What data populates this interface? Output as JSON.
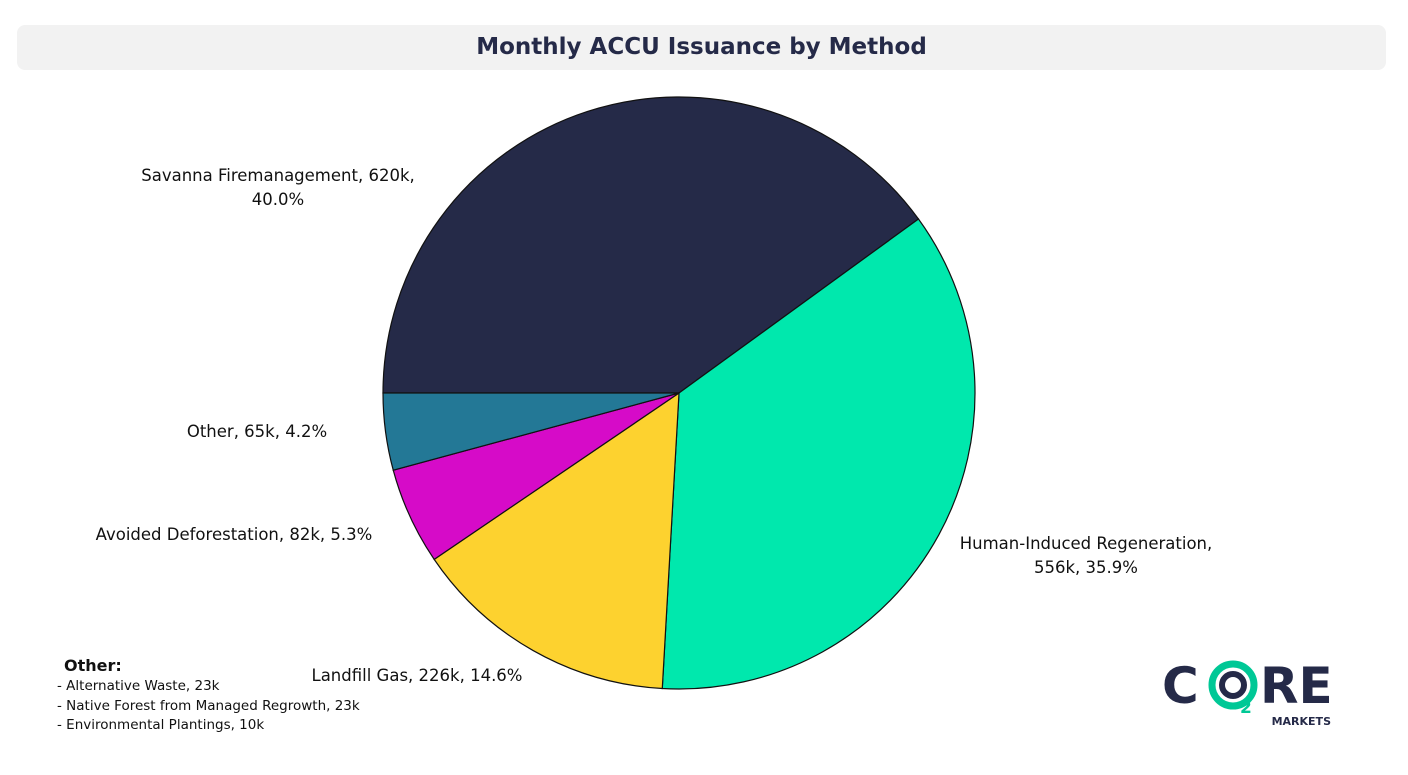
{
  "chart_data": {
    "type": "pie",
    "title": "Monthly ACCU Issuance by Method",
    "labels": [
      "Savanna Firemanagement, 620k,\n40.0%",
      "Human-Induced Regeneration,\n556k, 35.9%",
      "Landfill Gas, 226k, 14.6%",
      "Avoided Deforestation, 82k, 5.3%",
      "Other, 65k, 4.2%"
    ],
    "values": [
      40.0,
      35.9,
      14.6,
      5.3,
      4.2
    ],
    "colors": [
      "#252a48",
      "#00e8ad",
      "#fdd22f",
      "#d60bc8",
      "#237896"
    ]
  },
  "notes": {
    "title": "Other:",
    "items": [
      "- Alternative Waste, 23k",
      "- Native Forest from Managed Regrowth, 23k",
      "- Environmental Plantings, 10k"
    ]
  },
  "logo": {
    "left": "C",
    "sub": "2",
    "right": "RE",
    "tagline": "MARKETS"
  }
}
